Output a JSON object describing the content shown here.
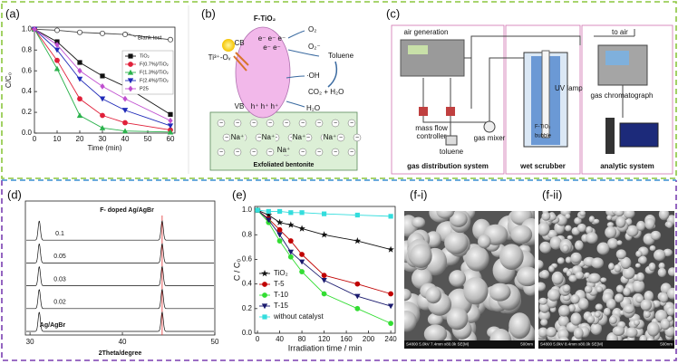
{
  "panels": {
    "a": "(a)",
    "b": "(b)",
    "c": "(c)",
    "d": "(d)",
    "e": "(e)",
    "fi": "(f-i)",
    "fii": "(f-ii)"
  },
  "chart_data": [
    {
      "type": "line",
      "xlabel": "Time (min)",
      "ylabel": "C/C₀",
      "x": [
        0,
        10,
        20,
        30,
        40,
        60
      ],
      "series": [
        {
          "name": "TiO₂",
          "color": "#111111",
          "marker": "square",
          "values": [
            1.0,
            0.88,
            0.68,
            0.55,
            0.45,
            0.18
          ]
        },
        {
          "name": "F(0.7%)/TiO₂",
          "color": "#e0203a",
          "marker": "circle",
          "values": [
            1.0,
            0.7,
            0.33,
            0.17,
            0.1,
            0.03
          ]
        },
        {
          "name": "F(1.3%)/TiO₂",
          "color": "#2bb24c",
          "marker": "triangle-up",
          "values": [
            1.0,
            0.62,
            0.17,
            0.05,
            0.02,
            0.01
          ]
        },
        {
          "name": "F(2.4%)/TiO₂",
          "color": "#1f2ab8",
          "marker": "triangle-down",
          "values": [
            1.0,
            0.8,
            0.52,
            0.33,
            0.22,
            0.07
          ]
        },
        {
          "name": "P25",
          "color": "#c050d0",
          "marker": "diamond",
          "values": [
            1.0,
            0.85,
            0.6,
            0.45,
            0.33,
            0.12
          ]
        }
      ],
      "reference_series": {
        "name": "Blank test",
        "color": "#444444",
        "marker": "open-circle",
        "values": [
          1.0,
          0.99,
          0.97,
          0.96,
          0.95,
          0.9
        ]
      },
      "xlim": [
        0,
        62
      ],
      "ylim": [
        0,
        1.02
      ],
      "xticks": [
        0,
        10,
        20,
        30,
        40,
        50,
        60
      ],
      "yticks": [
        {
          "value": 0,
          "label": "0.0"
        },
        0.2,
        0.4,
        0.6,
        0.8,
        {
          "value": 1,
          "label": "1.0"
        }
      ],
      "legend": "right"
    },
    {
      "type": "xrd",
      "title": "F- doped Ag/AgBr",
      "xlabel": "2Theta/degree",
      "peaks": [
        31.0,
        44.3
      ],
      "line_color": "#111111",
      "reference_color": "#e03030",
      "series": [
        {
          "name": "0.1"
        },
        {
          "name": "0.05"
        },
        {
          "name": "0.03"
        },
        {
          "name": "0.02"
        },
        {
          "name": "Ag/AgBr"
        }
      ],
      "xlim": [
        29.5,
        50
      ],
      "xticks": [
        30,
        40,
        50
      ]
    },
    {
      "type": "line",
      "xlabel": "Irradiation time / min",
      "ylabel": "C / C₀",
      "x": [
        0,
        20,
        40,
        60,
        80,
        120,
        180,
        240
      ],
      "series": [
        {
          "name": "TiO₂",
          "color": "#111111",
          "marker": "star",
          "values": [
            1.0,
            0.96,
            0.9,
            0.88,
            0.85,
            0.8,
            0.75,
            0.68
          ]
        },
        {
          "name": "T-5",
          "color": "#c00000",
          "marker": "circle",
          "values": [
            1.0,
            0.93,
            0.84,
            0.75,
            0.64,
            0.47,
            0.4,
            0.32
          ]
        },
        {
          "name": "T-10",
          "color": "#33dd33",
          "marker": "circle",
          "values": [
            1.0,
            0.9,
            0.75,
            0.62,
            0.5,
            0.32,
            0.2,
            0.08
          ]
        },
        {
          "name": "T-15",
          "color": "#1a1a6e",
          "marker": "triangle-down",
          "values": [
            1.0,
            0.92,
            0.8,
            0.66,
            0.58,
            0.43,
            0.3,
            0.22
          ]
        },
        {
          "name": "without catalyst",
          "color": "#33dddd",
          "marker": "square",
          "values": [
            1.0,
            0.99,
            0.99,
            0.98,
            0.98,
            0.97,
            0.96,
            0.95
          ]
        }
      ],
      "xlim": [
        -5,
        248
      ],
      "ylim": [
        0,
        1.03
      ],
      "xticks": [
        0,
        40,
        80,
        120,
        160,
        200,
        240
      ],
      "yticks": [
        {
          "value": 0,
          "label": "0.0"
        },
        0.2,
        0.4,
        0.6,
        0.8,
        {
          "value": 1,
          "label": "1.0"
        }
      ],
      "legend": "lower left"
    }
  ],
  "diagram_b": {
    "material": "F-TiO₂",
    "cb": "CB",
    "vb": "VB",
    "electrons": "e⁻ e⁻ e⁻",
    "electrons2": "e⁻ e⁻",
    "defect": "Ti³⁺-Oᵥ",
    "o2": "O₂",
    "superoxide": "O₂⁻",
    "toluene": "Toluene",
    "oh": "·OH",
    "products": "CO₂ + H₂O",
    "water": "H₂O",
    "holes": "h⁺ h⁺ h⁺",
    "ions": [
      "Na⁺",
      "Na⁺",
      "Na⁺",
      "Na⁺",
      "Na⁺"
    ],
    "support": "Exfoliated bentonite"
  },
  "diagram_c": {
    "air": "air generation",
    "to_air": "to air",
    "lamp": "UV lamp",
    "gc": "gas chromatograph",
    "mfc": [
      "mass flow",
      "controller"
    ],
    "toluene": "toluene",
    "mixer": "gas mixer",
    "catalyst": "F-TiO₂",
    "bubble": "bubble",
    "sections": [
      "gas distribution system",
      "wet scrubber",
      "analytic system"
    ]
  },
  "images": [
    {
      "caption": "S4800 5.0kV 7.4mm x80.0k SE(M)",
      "scale": "500nm"
    },
    {
      "caption": "S4800 5.0kV 8.4mm x80.0k SE(M)",
      "scale": "500nm"
    }
  ]
}
